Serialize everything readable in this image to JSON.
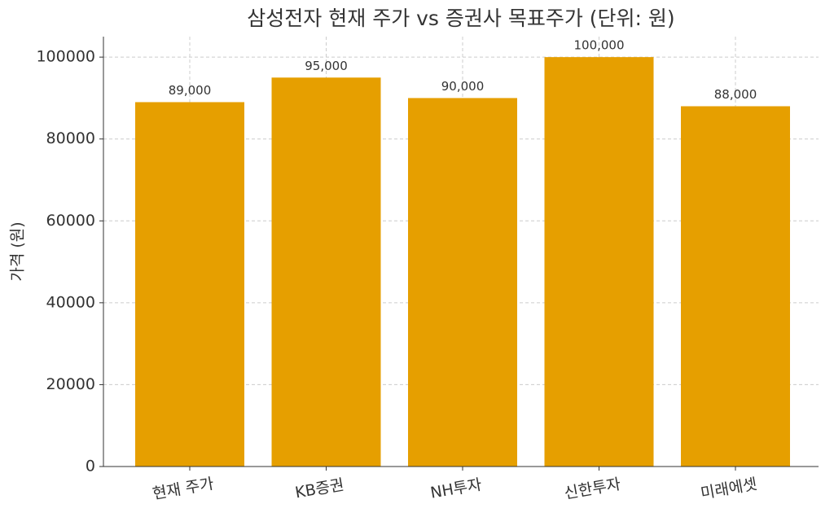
{
  "chart_data": {
    "type": "bar",
    "title": "삼성전자 현재 주가 vs 증권사 목표주가 (단위: 원)",
    "y_label": "가격 (원)",
    "categories": [
      "현재 주가",
      "KB증권",
      "NH투자",
      "신한투자",
      "미래에셋"
    ],
    "values": [
      89000,
      95000,
      90000,
      100000,
      88000
    ],
    "value_labels": [
      "89,000",
      "95,000",
      "90,000",
      "100,000",
      "88,000"
    ],
    "color": "#e69f00",
    "ylim": [
      0,
      105000
    ],
    "yticks": [
      0,
      20000,
      40000,
      60000,
      80000,
      100000
    ],
    "grid": true
  }
}
